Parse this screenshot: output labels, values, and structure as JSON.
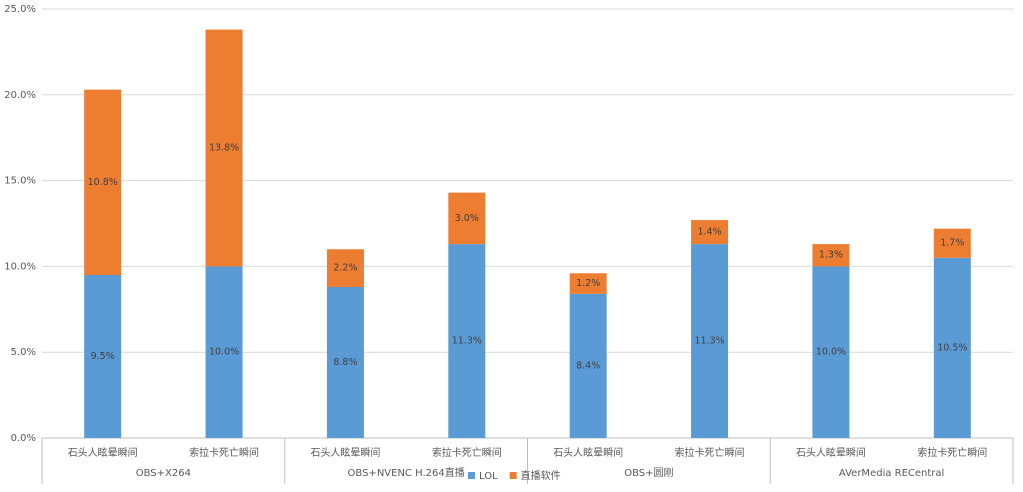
{
  "chart_data": {
    "type": "stacked_bar",
    "categories": [
      "石头人眩晕瞬间",
      "索拉卡死亡瞬间",
      "石头人眩晕瞬间",
      "索拉卡死亡瞬间",
      "石头人眩晕瞬间",
      "索拉卡死亡瞬间",
      "石头人眩晕瞬间",
      "索拉卡死亡瞬间"
    ],
    "groups": [
      "OBS+X264",
      "OBS+NVENC H.264直播",
      "OBS+圆刚",
      "AVerMedia RECentral"
    ],
    "series": [
      {
        "name": "LOL",
        "color": "#5b9bd5",
        "values": [
          9.5,
          10.0,
          8.8,
          11.3,
          8.4,
          11.3,
          10.0,
          10.5
        ],
        "value_labels": [
          "9.5%",
          "10.0%",
          "8.8%",
          "11.3%",
          "8.4%",
          "11.3%",
          "10.0%",
          "10.5%"
        ]
      },
      {
        "name": "直播软件",
        "color": "#ed7d31",
        "values": [
          10.8,
          13.8,
          2.2,
          3.0,
          1.2,
          1.4,
          1.3,
          1.7
        ],
        "value_labels": [
          "10.8%",
          "13.8%",
          "2.2%",
          "3.0%",
          "1.2%",
          "1.4%",
          "1.3%",
          "1.7%"
        ]
      }
    ],
    "ylim": [
      0,
      25
    ],
    "yticks": [
      {
        "value": 0,
        "label": "0.0%"
      },
      {
        "value": 5,
        "label": "5.0%"
      },
      {
        "value": 10,
        "label": "10.0%"
      },
      {
        "value": 15,
        "label": "15.0%"
      },
      {
        "value": 20,
        "label": "20.0%"
      },
      {
        "value": 25,
        "label": "25.0%"
      }
    ],
    "grid": true,
    "legend": "bottom"
  }
}
